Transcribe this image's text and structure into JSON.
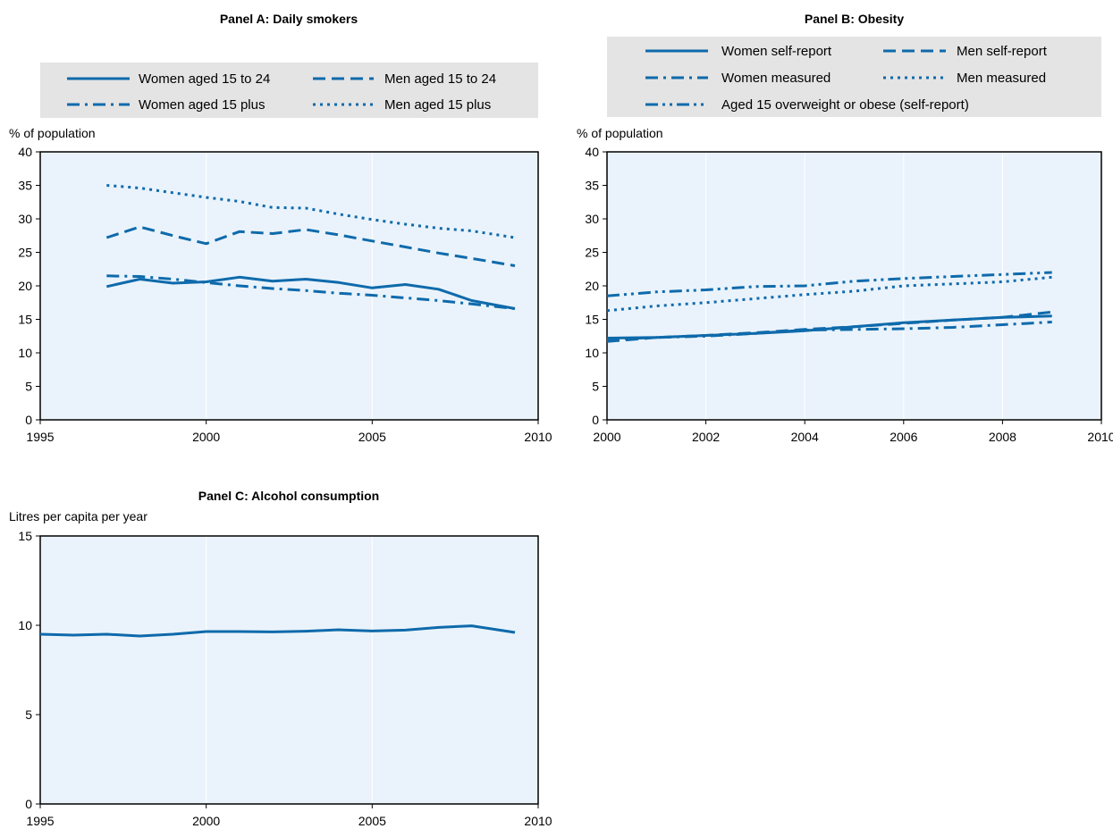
{
  "colors": {
    "series": "#0e6aab",
    "plot_bg": "#eaf3fb",
    "legend_bg": "#e4e4e4",
    "grid": "#ffffff",
    "frame": "#000000"
  },
  "chart_data": [
    {
      "id": "A",
      "type": "line",
      "title": "Panel A: Daily smokers",
      "ylabel": "% of population",
      "xlim": [
        1995,
        2010
      ],
      "ylim": [
        0,
        40
      ],
      "xticks": [
        1995,
        2000,
        2005,
        2010
      ],
      "yticks": [
        0,
        5,
        10,
        15,
        20,
        25,
        30,
        35,
        40
      ],
      "grid": "vertical",
      "legend_placement": "top",
      "series": [
        {
          "name": "Women aged 15 to 24",
          "style": "solid",
          "x": [
            1997,
            1998,
            1999,
            2000,
            2001,
            2002,
            2003,
            2004,
            2005,
            2006,
            2007,
            2008,
            2009.3
          ],
          "y": [
            19.9,
            21.0,
            20.4,
            20.6,
            21.3,
            20.7,
            21.0,
            20.5,
            19.7,
            20.2,
            19.5,
            17.8,
            16.6
          ]
        },
        {
          "name": "Men aged 15 to 24",
          "style": "dash",
          "x": [
            1997,
            1998,
            1999,
            2000,
            2001,
            2002,
            2003,
            2004,
            2005,
            2006,
            2007,
            2008,
            2009.3
          ],
          "y": [
            27.2,
            28.8,
            27.5,
            26.3,
            28.1,
            27.8,
            28.4,
            27.6,
            26.7,
            25.8,
            24.9,
            24.1,
            23.0
          ]
        },
        {
          "name": "Women aged 15 plus",
          "style": "dashdot",
          "x": [
            1997,
            1998,
            1999,
            2000,
            2001,
            2002,
            2003,
            2004,
            2005,
            2006,
            2007,
            2008,
            2009.3
          ],
          "y": [
            21.5,
            21.4,
            21.0,
            20.5,
            20.0,
            19.6,
            19.3,
            18.9,
            18.6,
            18.2,
            17.8,
            17.3,
            16.6
          ]
        },
        {
          "name": "Men aged 15 plus",
          "style": "dot",
          "x": [
            1997,
            1998,
            1999,
            2000,
            2001,
            2002,
            2003,
            2004,
            2005,
            2006,
            2007,
            2008,
            2009.3
          ],
          "y": [
            35.0,
            34.6,
            33.9,
            33.2,
            32.6,
            31.7,
            31.6,
            30.7,
            29.9,
            29.2,
            28.6,
            28.2,
            27.2
          ]
        }
      ]
    },
    {
      "id": "B",
      "type": "line",
      "title": "Panel B: Obesity",
      "ylabel": "% of population",
      "xlim": [
        2000,
        2010
      ],
      "ylim": [
        0,
        40
      ],
      "xticks": [
        2000,
        2002,
        2004,
        2006,
        2008,
        2010
      ],
      "yticks": [
        0,
        5,
        10,
        15,
        20,
        25,
        30,
        35,
        40
      ],
      "grid": "vertical",
      "legend_placement": "top",
      "series": [
        {
          "name": "Women self-report",
          "style": "solid",
          "x": [
            2000,
            2001,
            2002,
            2003,
            2004,
            2005,
            2006,
            2007,
            2008,
            2009
          ],
          "y": [
            12.2,
            12.3,
            12.6,
            12.9,
            13.3,
            13.9,
            14.5,
            14.9,
            15.3,
            15.5
          ]
        },
        {
          "name": "Men self-report",
          "style": "dash",
          "x": [
            2000,
            2001,
            2002,
            2003,
            2004,
            2005,
            2006,
            2007,
            2008,
            2009
          ],
          "y": [
            11.7,
            12.3,
            12.6,
            13.0,
            13.5,
            13.9,
            14.4,
            14.9,
            15.3,
            16.1
          ]
        },
        {
          "name": "Women measured",
          "style": "dashdot",
          "x": [
            2000,
            2001,
            2002,
            2003,
            2004,
            2005,
            2006,
            2007,
            2008,
            2009
          ],
          "y": [
            12.0,
            12.3,
            12.5,
            12.9,
            13.4,
            13.5,
            13.6,
            13.8,
            14.2,
            14.6
          ]
        },
        {
          "name": "Men measured",
          "style": "dot",
          "x": [
            2000,
            2001,
            2002,
            2003,
            2004,
            2005,
            2006,
            2007,
            2008,
            2009
          ],
          "y": [
            16.3,
            17.0,
            17.5,
            18.1,
            18.7,
            19.2,
            20.0,
            20.3,
            20.6,
            21.3
          ]
        },
        {
          "name": "Aged 15 overweight or obese (self-report)",
          "style": "dashdotdot",
          "x": [
            2000,
            2001,
            2002,
            2003,
            2004,
            2005,
            2006,
            2007,
            2008,
            2009
          ],
          "y": [
            18.5,
            19.1,
            19.4,
            19.9,
            20.0,
            20.7,
            21.1,
            21.4,
            21.7,
            22.0
          ]
        }
      ]
    },
    {
      "id": "C",
      "type": "line",
      "title": "Panel C: Alcohol consumption",
      "ylabel": "Litres per capita per year",
      "xlim": [
        1995,
        2010
      ],
      "ylim": [
        0,
        15
      ],
      "xticks": [
        1995,
        2000,
        2005,
        2010
      ],
      "yticks": [
        0,
        5,
        10,
        15
      ],
      "grid": "vertical",
      "legend_placement": "none",
      "series": [
        {
          "name": "",
          "style": "solid",
          "x": [
            1995,
            1996,
            1997,
            1998,
            1999,
            2000,
            2001,
            2002,
            2003,
            2004,
            2005,
            2006,
            2007,
            2008,
            2009.3
          ],
          "y": [
            9.5,
            9.45,
            9.5,
            9.4,
            9.5,
            9.65,
            9.65,
            9.63,
            9.67,
            9.75,
            9.68,
            9.73,
            9.88,
            9.97,
            9.6
          ]
        }
      ]
    }
  ]
}
